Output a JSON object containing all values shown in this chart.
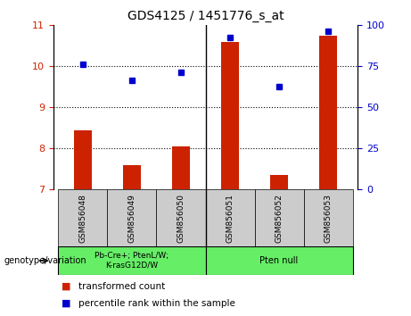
{
  "title": "GDS4125 / 1451776_s_at",
  "samples": [
    "GSM856048",
    "GSM856049",
    "GSM856050",
    "GSM856051",
    "GSM856052",
    "GSM856053"
  ],
  "bar_values": [
    8.45,
    7.6,
    8.05,
    10.6,
    7.35,
    10.75
  ],
  "dot_values": [
    10.05,
    9.65,
    9.85,
    10.7,
    9.5,
    10.85
  ],
  "ylim_left": [
    7,
    11
  ],
  "ylim_right": [
    0,
    100
  ],
  "yticks_left": [
    7,
    8,
    9,
    10,
    11
  ],
  "yticks_right": [
    0,
    25,
    50,
    75,
    100
  ],
  "bar_color": "#cc2200",
  "dot_color": "#0000cc",
  "group1_label": "Pb-Cre+; PtenL/W;\nK-rasG12D/W",
  "group2_label": "Pten null",
  "group_color": "#66ee66",
  "legend_labels": [
    "transformed count",
    "percentile rank within the sample"
  ],
  "genotype_label": "genotype/variation",
  "left_tick_color": "#cc2200",
  "right_tick_color": "#0000cc",
  "xtick_bg": "#cccccc",
  "bar_width": 0.35,
  "dot_size": 5
}
